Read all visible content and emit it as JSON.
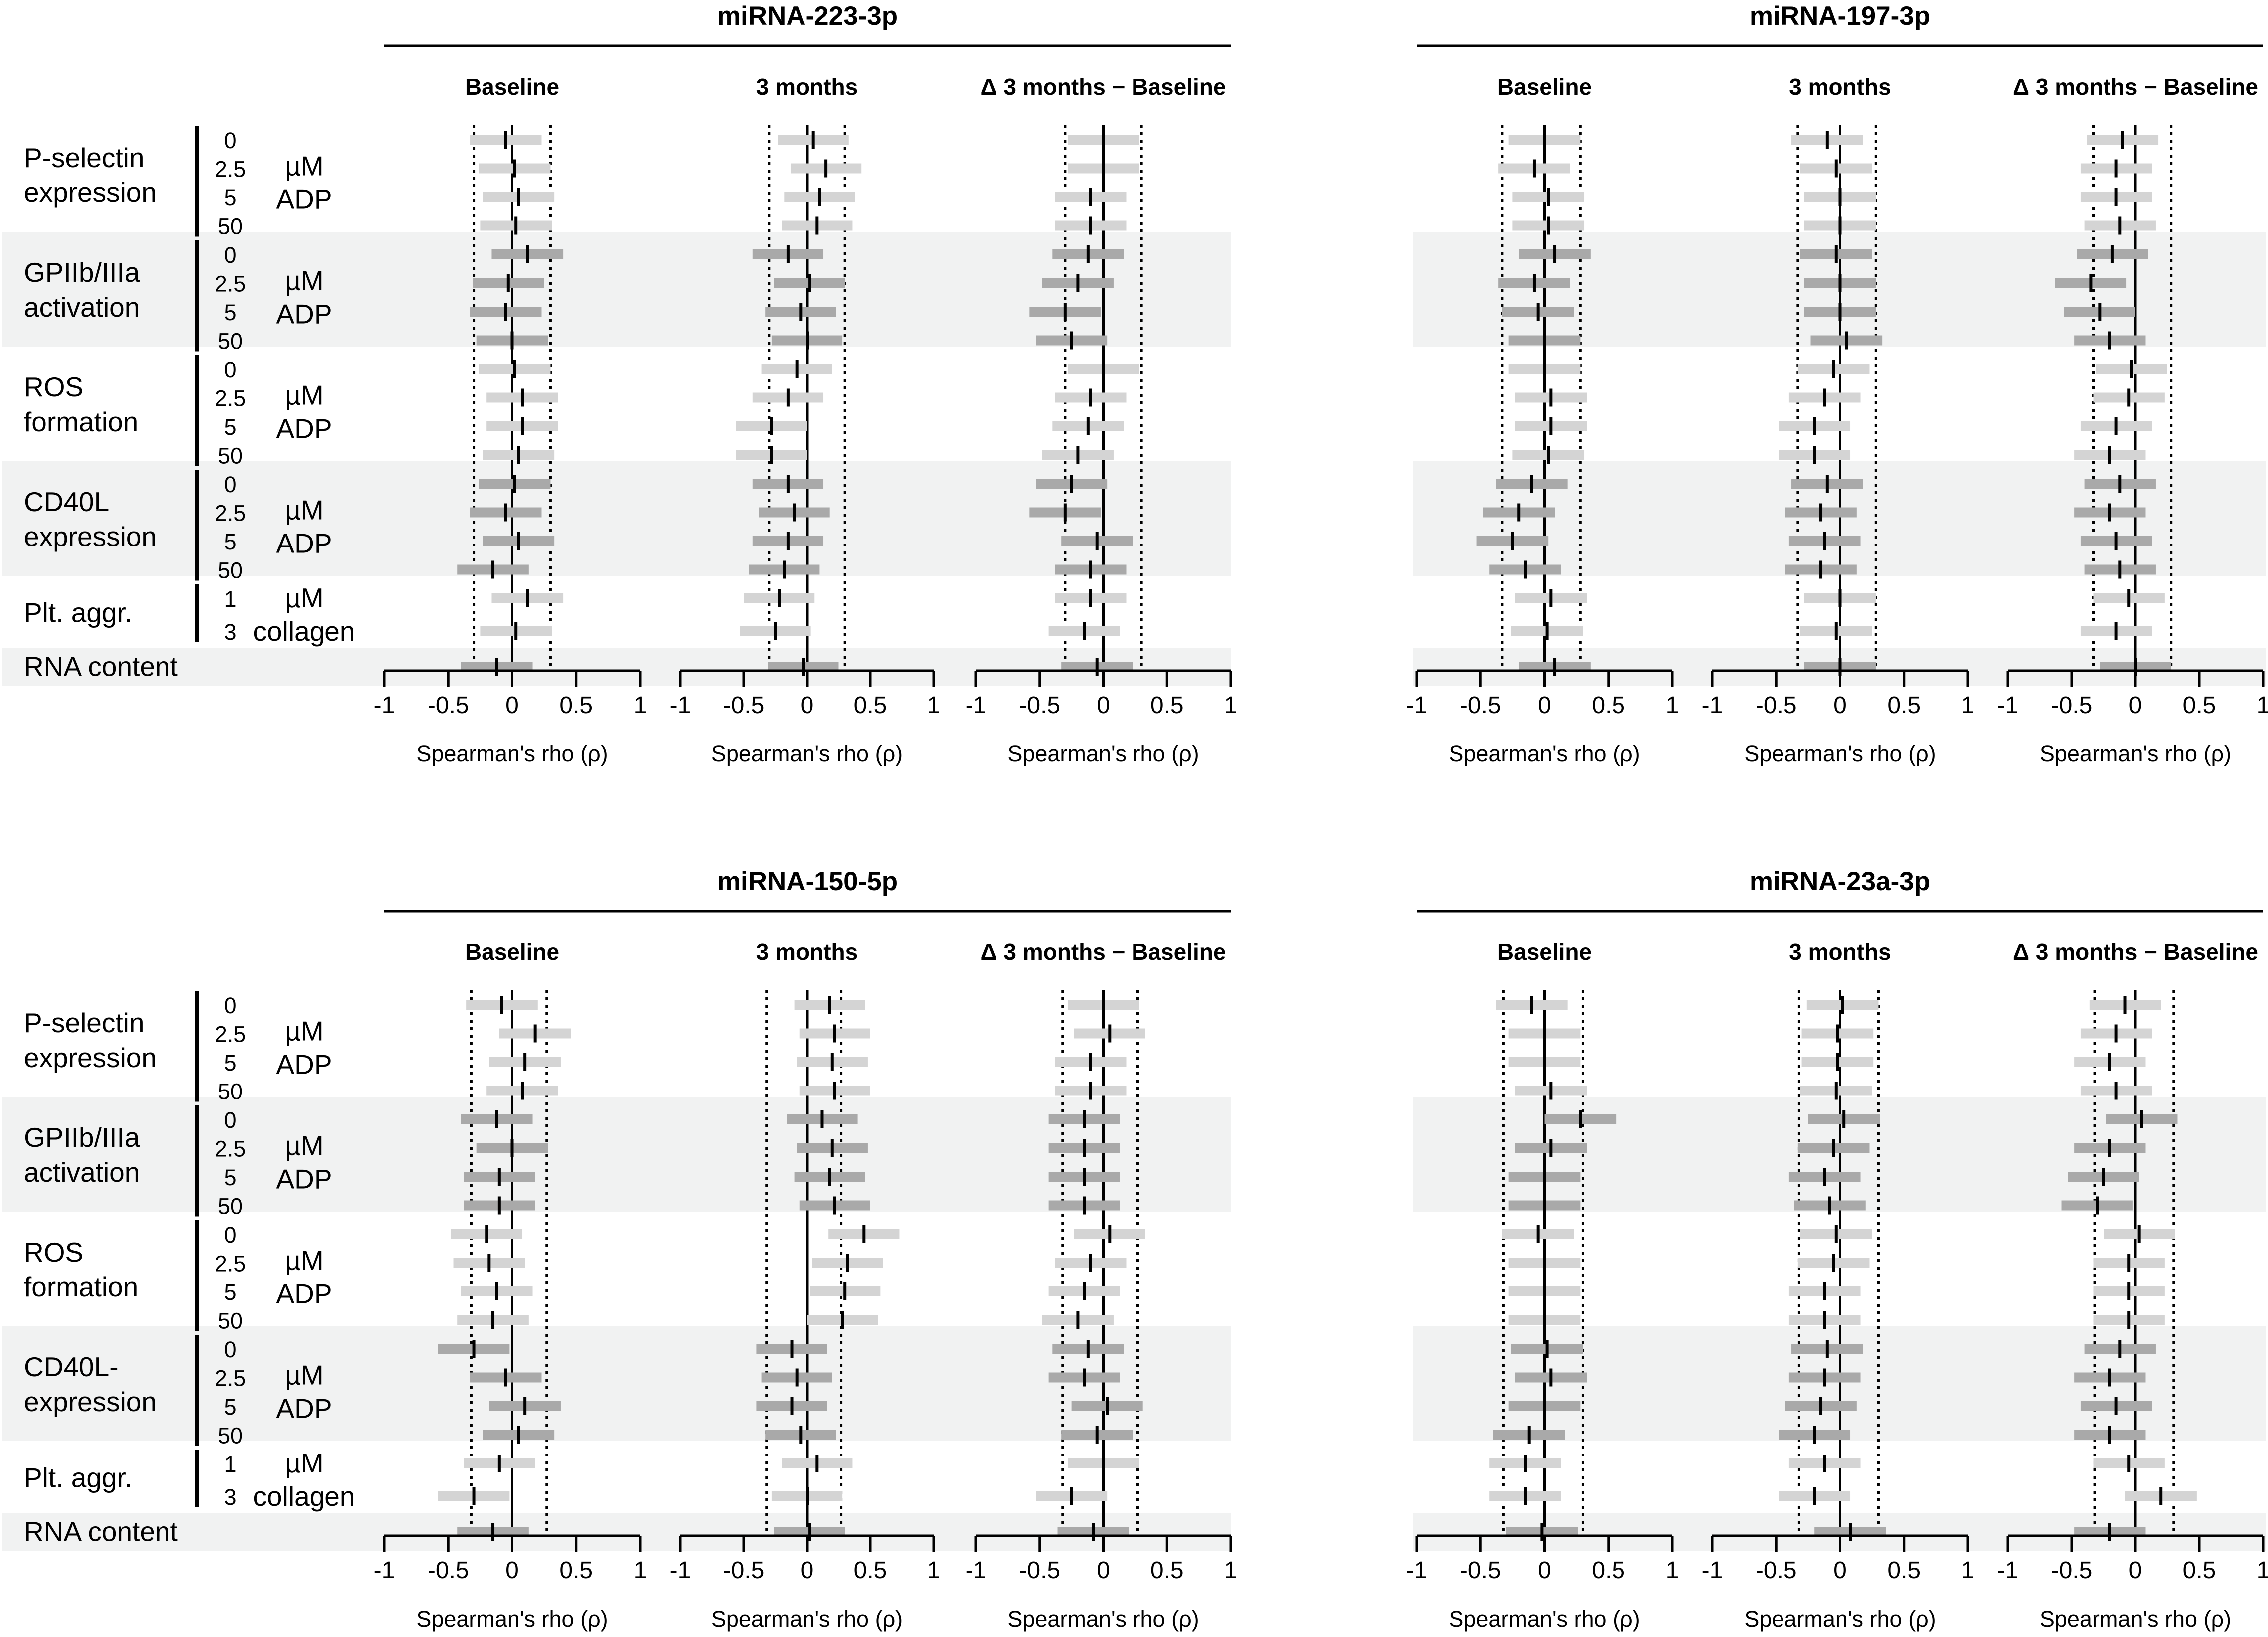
{
  "chart_data": {
    "type": "forest",
    "description_note": "Four panels of Spearman correlation forest plots; each point has a confidence interval bar.",
    "axis": {
      "xlabel": "Spearman's rho (ρ)",
      "xlim": [
        -1,
        1
      ],
      "ticks": [
        "-1",
        "-0.5",
        "0",
        "0.5",
        "1"
      ]
    },
    "columns": [
      "Baseline",
      "3 months",
      "Δ 3 months − Baseline"
    ],
    "row_groups": [
      {
        "label_lines": [
          "P-selectin",
          "expression"
        ],
        "unit_lines": [
          "µM",
          "ADP"
        ],
        "concentrations": [
          "0",
          "2.5",
          "5",
          "50"
        ],
        "shaded": false
      },
      {
        "label_lines": [
          "GPIIb/IIIa",
          "activation"
        ],
        "unit_lines": [
          "µM",
          "ADP"
        ],
        "concentrations": [
          "0",
          "2.5",
          "5",
          "50"
        ],
        "shaded": true
      },
      {
        "label_lines": [
          "ROS",
          "formation"
        ],
        "unit_lines": [
          "µM",
          "ADP"
        ],
        "concentrations": [
          "0",
          "2.5",
          "5",
          "50"
        ],
        "shaded": false
      },
      {
        "label_lines": [
          "CD40L",
          "expression"
        ],
        "unit_lines": [
          "µM",
          "ADP"
        ],
        "concentrations": [
          "0",
          "2.5",
          "5",
          "50"
        ],
        "shaded": true
      },
      {
        "label_lines": [
          "Plt. aggr."
        ],
        "unit_lines": [
          "µM",
          "collagen"
        ],
        "concentrations": [
          "1",
          "3"
        ],
        "shaded": false
      },
      {
        "label_lines": [
          "RNA content"
        ],
        "unit_lines": [],
        "concentrations": [],
        "shaded": true
      }
    ],
    "row_groups_bottom_override": {
      "3": [
        "CD40L-",
        "expression"
      ]
    },
    "panels": [
      {
        "title": "miRNA-223-3p",
        "position": "top-left",
        "significance_threshold": [
          -0.3,
          0.3
        ],
        "series": [
          {
            "column": "Baseline",
            "rho": [
              -0.05,
              0.02,
              0.05,
              0.03,
              0.12,
              -0.03,
              -0.05,
              0.0,
              0.02,
              0.08,
              0.08,
              0.05,
              0.02,
              -0.05,
              0.05,
              -0.15,
              0.12,
              0.03,
              -0.12
            ]
          },
          {
            "column": "3 months",
            "rho": [
              0.05,
              0.15,
              0.1,
              0.08,
              -0.15,
              0.02,
              -0.05,
              0.0,
              -0.08,
              -0.15,
              -0.28,
              -0.28,
              -0.15,
              -0.1,
              -0.15,
              -0.18,
              -0.22,
              -0.25,
              -0.03
            ]
          },
          {
            "column": "Δ 3 months − Baseline",
            "rho": [
              0.0,
              0.0,
              -0.1,
              -0.1,
              -0.12,
              -0.2,
              -0.3,
              -0.25,
              0.0,
              -0.1,
              -0.12,
              -0.2,
              -0.25,
              -0.3,
              -0.05,
              -0.1,
              -0.1,
              -0.15,
              -0.05
            ]
          }
        ]
      },
      {
        "title": "miRNA-197-3p",
        "position": "top-right",
        "significance_threshold": [
          -0.33,
          0.28
        ],
        "series": [
          {
            "column": "Baseline",
            "rho": [
              0.0,
              -0.08,
              0.03,
              0.03,
              0.08,
              -0.08,
              -0.05,
              0.0,
              0.0,
              0.05,
              0.05,
              0.03,
              -0.1,
              -0.2,
              -0.25,
              -0.15,
              0.05,
              0.02,
              0.08
            ]
          },
          {
            "column": "3 months",
            "rho": [
              -0.1,
              -0.03,
              0.0,
              0.0,
              -0.03,
              0.0,
              0.0,
              0.05,
              -0.05,
              -0.12,
              -0.2,
              -0.2,
              -0.1,
              -0.15,
              -0.12,
              -0.15,
              0.0,
              -0.03,
              0.0
            ]
          },
          {
            "column": "Δ 3 months − Baseline",
            "rho": [
              -0.1,
              -0.15,
              -0.15,
              -0.12,
              -0.18,
              -0.35,
              -0.28,
              -0.2,
              -0.03,
              -0.05,
              -0.15,
              -0.2,
              -0.12,
              -0.2,
              -0.15,
              -0.12,
              -0.05,
              -0.15,
              0.0
            ]
          }
        ]
      },
      {
        "title": "miRNA-150-5p",
        "position": "bottom-left",
        "significance_threshold": [
          -0.32,
          0.27
        ],
        "series": [
          {
            "column": "Baseline",
            "rho": [
              -0.08,
              0.18,
              0.1,
              0.08,
              -0.12,
              0.0,
              -0.1,
              -0.1,
              -0.2,
              -0.18,
              -0.12,
              -0.15,
              -0.3,
              -0.05,
              0.1,
              0.05,
              -0.1,
              -0.3,
              -0.15
            ]
          },
          {
            "column": "3 months",
            "rho": [
              0.18,
              0.22,
              0.2,
              0.22,
              0.12,
              0.2,
              0.18,
              0.22,
              0.45,
              0.32,
              0.3,
              0.28,
              -0.12,
              -0.08,
              -0.12,
              -0.05,
              0.08,
              0.0,
              0.02
            ]
          },
          {
            "column": "Δ 3 months − Baseline",
            "rho": [
              0.0,
              0.05,
              -0.1,
              -0.1,
              -0.15,
              -0.15,
              -0.15,
              -0.15,
              0.05,
              -0.1,
              -0.15,
              -0.2,
              -0.12,
              -0.15,
              0.03,
              -0.05,
              0.0,
              -0.25,
              -0.08
            ]
          }
        ]
      },
      {
        "title": "miRNA-23a-3p",
        "position": "bottom-right",
        "significance_threshold": [
          -0.32,
          0.3
        ],
        "series": [
          {
            "column": "Baseline",
            "rho": [
              -0.1,
              0.0,
              0.0,
              0.05,
              0.28,
              0.05,
              0.0,
              0.0,
              -0.05,
              0.0,
              0.0,
              0.0,
              0.02,
              0.05,
              0.0,
              -0.12,
              -0.15,
              -0.15,
              -0.02
            ]
          },
          {
            "column": "3 months",
            "rho": [
              0.02,
              -0.02,
              -0.02,
              -0.03,
              0.03,
              -0.05,
              -0.12,
              -0.08,
              -0.03,
              -0.05,
              -0.12,
              -0.12,
              -0.1,
              -0.12,
              -0.15,
              -0.2,
              -0.12,
              -0.2,
              0.08
            ]
          },
          {
            "column": "Δ 3 months − Baseline",
            "rho": [
              -0.08,
              -0.15,
              -0.2,
              -0.15,
              0.05,
              -0.2,
              -0.25,
              -0.3,
              0.03,
              -0.05,
              -0.05,
              -0.05,
              -0.12,
              -0.2,
              -0.15,
              -0.2,
              -0.05,
              0.2,
              -0.2
            ]
          }
        ]
      }
    ]
  }
}
